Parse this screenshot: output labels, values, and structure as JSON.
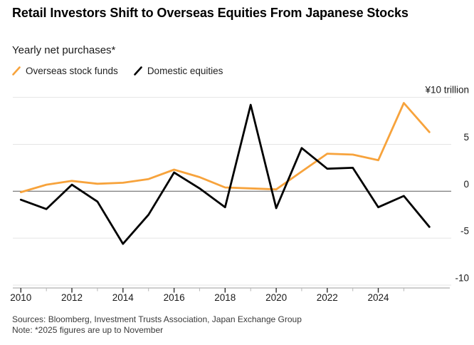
{
  "header": {
    "title": "Retail Investors Shift to Overseas Equities From Japanese Stocks",
    "subtitle": "Yearly net purchases*"
  },
  "legend": {
    "items": [
      {
        "label": "Overseas stock funds",
        "color": "#F7A33C"
      },
      {
        "label": "Domestic equities",
        "color": "#000000"
      }
    ]
  },
  "footer": {
    "sources": "Sources: Bloomberg, Investment Trusts Association, Japan Exchange Group",
    "note": "Note: *2025 figures are up to November"
  },
  "chart_data": {
    "type": "line",
    "unit_label": "¥10 trillion",
    "categories": [
      "2010",
      "2011",
      "2012",
      "2013",
      "2014",
      "2015",
      "2016",
      "2017",
      "2018",
      "2019",
      "2020",
      "2021",
      "2022",
      "2023",
      "2024",
      "2025",
      "2025 (Nov.)"
    ],
    "series": [
      {
        "name": "Overseas stock funds",
        "color": "#F7A33C",
        "values": [
          -0.1,
          0.7,
          1.1,
          0.8,
          0.9,
          1.3,
          2.3,
          1.5,
          0.4,
          0.3,
          0.2,
          2.1,
          4.0,
          3.9,
          3.3,
          9.4,
          6.3
        ]
      },
      {
        "name": "Domestic equities",
        "color": "#000000",
        "values": [
          -0.9,
          -1.9,
          0.7,
          -1.1,
          -5.6,
          -2.5,
          2.0,
          0.3,
          -1.7,
          9.2,
          -1.8,
          4.6,
          2.4,
          2.5,
          -1.7,
          -0.5,
          -3.8
        ]
      }
    ],
    "ylim": [
      -10,
      10
    ],
    "gridline_values": [
      10,
      5,
      0,
      -5,
      -10
    ],
    "y_tick_labels": [
      "5",
      "0",
      "-5",
      "-10"
    ],
    "y_tick_values": [
      5,
      0,
      -5,
      -10
    ],
    "x_tick_labels": [
      "2010",
      "2012",
      "2014",
      "2016",
      "2018",
      "2020",
      "2022",
      "2024"
    ],
    "grid": "horizontal-only",
    "legend_position": "top-left",
    "colors": {
      "grid": "#e4e4e4",
      "zero_line": "#5a5a5a",
      "axis_line": "#9b9b9b",
      "major_tick": "#2e2e2e",
      "minor_tick": "#b5b5b5",
      "label_text": "#1a1a1a"
    }
  }
}
